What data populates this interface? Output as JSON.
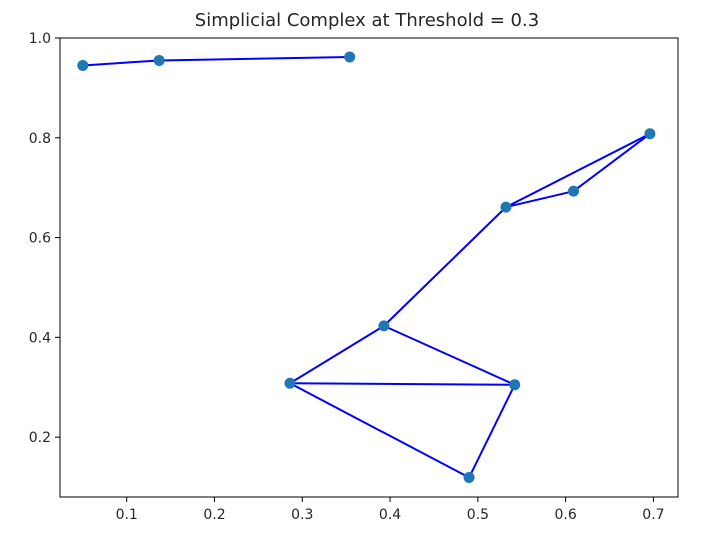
{
  "chart_data": {
    "type": "scatter",
    "title": "Simplicial Complex at Threshold = 0.3",
    "xlabel": "",
    "ylabel": "",
    "xlim": [
      0.024,
      0.728
    ],
    "ylim": [
      0.08,
      1.0
    ],
    "x_ticks": [
      0.1,
      0.2,
      0.3,
      0.4,
      0.5,
      0.6,
      0.7
    ],
    "y_ticks": [
      0.2,
      0.4,
      0.6,
      0.8,
      1.0
    ],
    "x_tick_labels": [
      "0.1",
      "0.2",
      "0.3",
      "0.4",
      "0.5",
      "0.6",
      "0.7"
    ],
    "y_tick_labels": [
      "0.2",
      "0.4",
      "0.6",
      "0.8",
      "1.0"
    ],
    "grid": false,
    "point_color": "#1f77b4",
    "edge_color": "#0000ff",
    "points": [
      {
        "x": 0.05,
        "y": 0.945
      },
      {
        "x": 0.137,
        "y": 0.955
      },
      {
        "x": 0.354,
        "y": 0.962
      },
      {
        "x": 0.696,
        "y": 0.808
      },
      {
        "x": 0.609,
        "y": 0.693
      },
      {
        "x": 0.532,
        "y": 0.661
      },
      {
        "x": 0.393,
        "y": 0.423
      },
      {
        "x": 0.286,
        "y": 0.308
      },
      {
        "x": 0.542,
        "y": 0.305
      },
      {
        "x": 0.49,
        "y": 0.119
      }
    ],
    "edges": [
      [
        0,
        1
      ],
      [
        1,
        2
      ],
      [
        3,
        4
      ],
      [
        4,
        5
      ],
      [
        3,
        5
      ],
      [
        5,
        6
      ],
      [
        6,
        7
      ],
      [
        6,
        8
      ],
      [
        7,
        8
      ],
      [
        7,
        9
      ],
      [
        8,
        9
      ]
    ]
  }
}
